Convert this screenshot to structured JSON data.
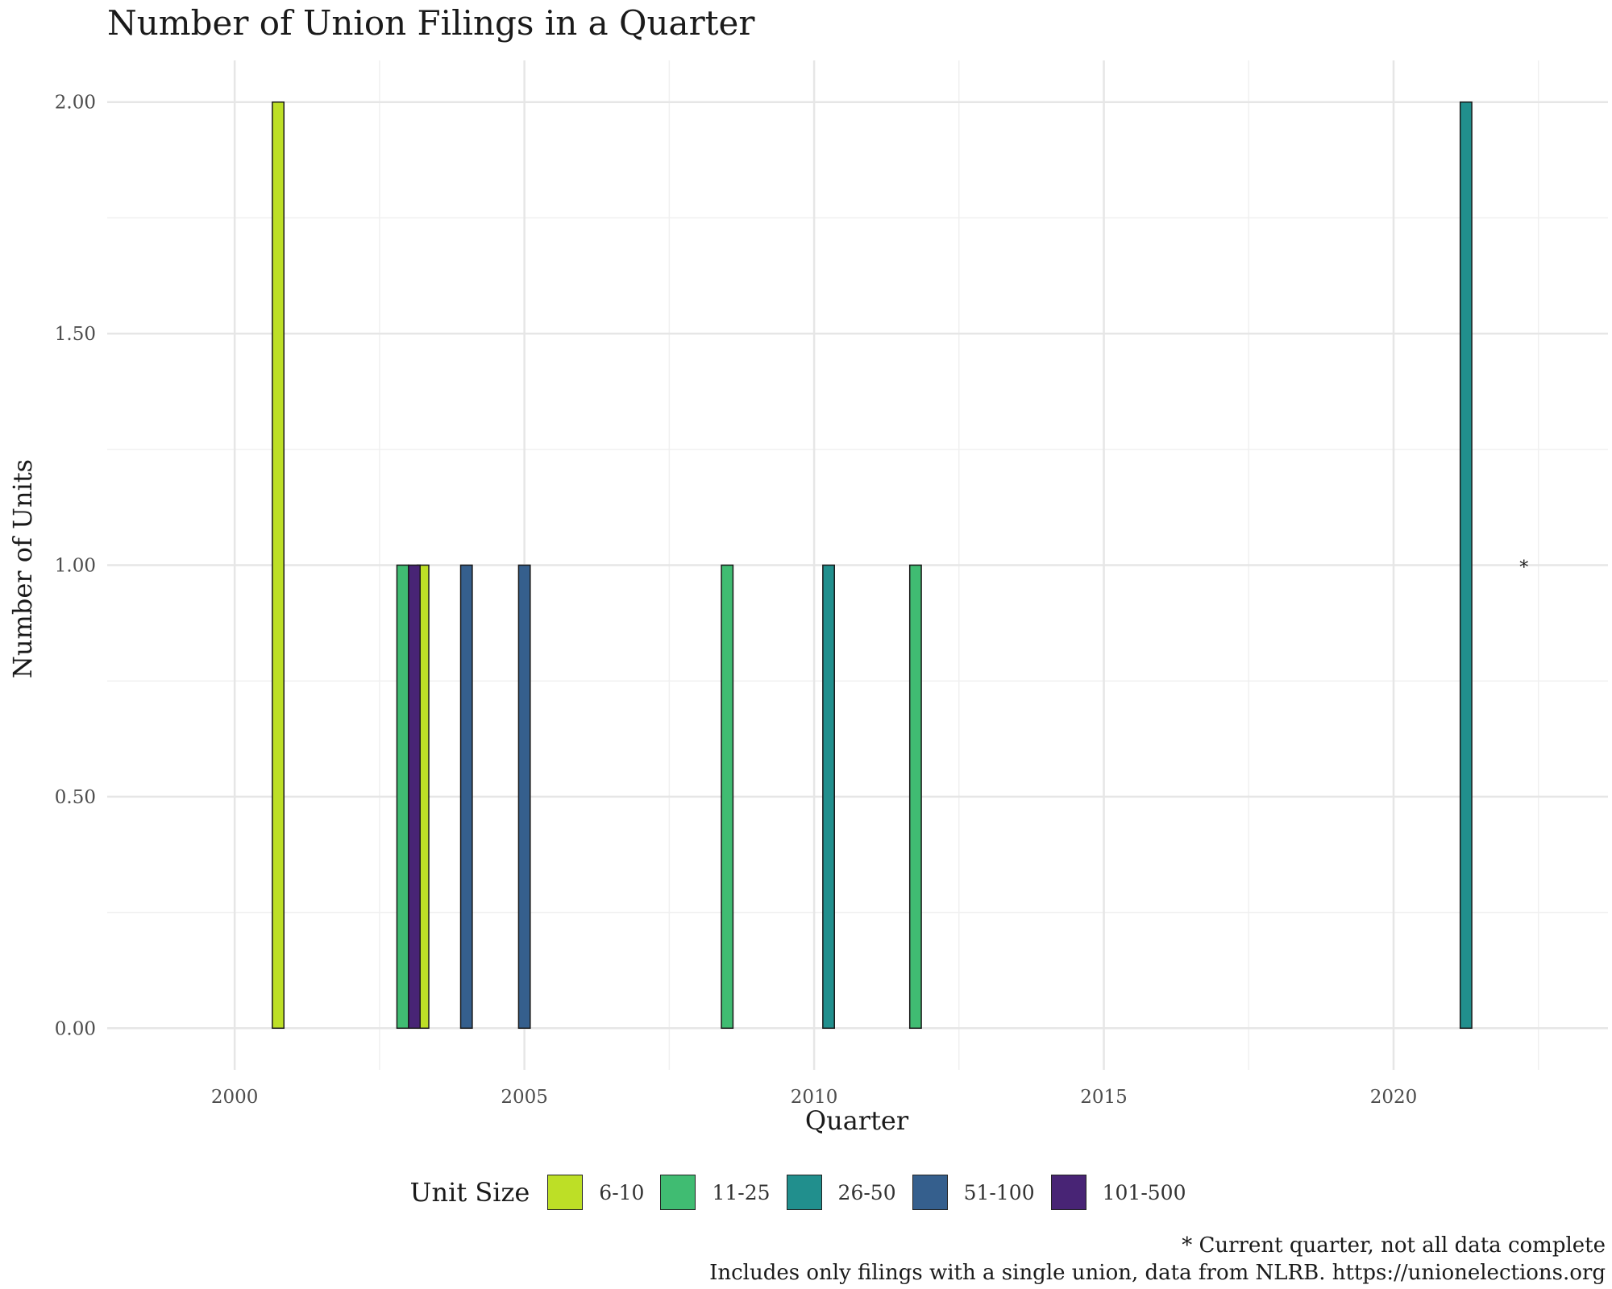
{
  "chart_data": {
    "type": "bar",
    "title": "Number of Union Filings in a Quarter",
    "xlabel": "Quarter",
    "ylabel": "Number of Units",
    "xlim": [
      1997.8,
      2023.7
    ],
    "ylim": [
      -0.09,
      2.09
    ],
    "x_ticks": [
      2000,
      2005,
      2010,
      2015,
      2020
    ],
    "x_tick_labels": [
      "2000",
      "2005",
      "2010",
      "2015",
      "2020"
    ],
    "y_ticks": [
      0,
      0.5,
      1,
      1.5,
      2
    ],
    "y_tick_labels": [
      "0.00",
      "0.50",
      "1.00",
      "1.50",
      "2.00"
    ],
    "grid": true,
    "legend_title": "Unit Size",
    "legend_position": "bottom",
    "series": [
      {
        "name": "6-10",
        "color": "#bddf26",
        "points": [
          {
            "x": 2000.75,
            "y": 2
          },
          {
            "x": 2003.25,
            "y": 1
          }
        ]
      },
      {
        "name": "11-25",
        "color": "#40bc72",
        "points": [
          {
            "x": 2003.0,
            "y": 1
          },
          {
            "x": 2008.5,
            "y": 1
          },
          {
            "x": 2011.75,
            "y": 1
          }
        ]
      },
      {
        "name": "26-50",
        "color": "#218f8d",
        "points": [
          {
            "x": 2010.25,
            "y": 1
          },
          {
            "x": 2021.25,
            "y": 2
          }
        ]
      },
      {
        "name": "51-100",
        "color": "#355f8d",
        "points": [
          {
            "x": 2004.0,
            "y": 1
          },
          {
            "x": 2005.0,
            "y": 1
          }
        ]
      },
      {
        "name": "101-500",
        "color": "#482475",
        "points": [
          {
            "x": 2003.0,
            "y": 1
          }
        ]
      }
    ],
    "annotation": {
      "text": "*",
      "x": 2022.25,
      "y": 1
    }
  },
  "caption": {
    "line1": "* Current quarter, not all data complete",
    "line2": "Includes only filings with a single union, data from NLRB. https://unionelections.org"
  }
}
